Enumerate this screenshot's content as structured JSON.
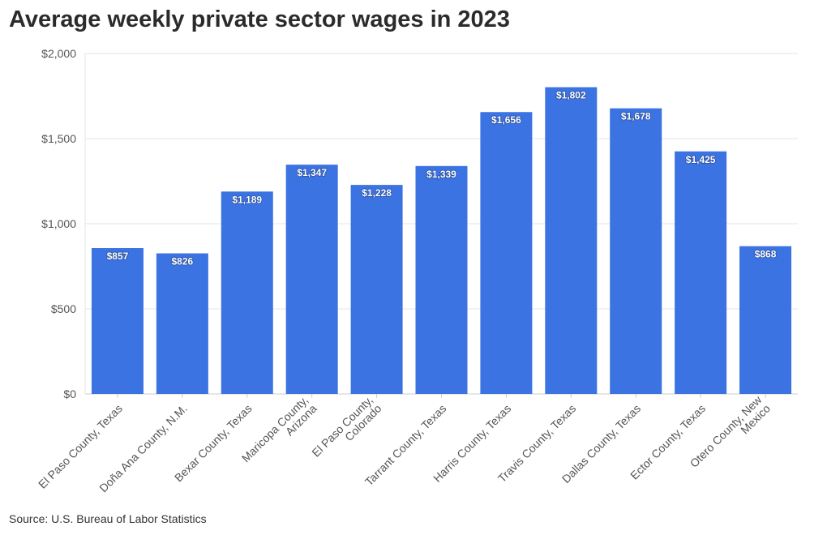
{
  "title": "Average weekly private sector wages in 2023",
  "source": "Source: U.S. Bureau of Labor Statistics",
  "colors": {
    "bar": "#3b73e3",
    "grid": "#e6e6e6",
    "text": "#333333"
  },
  "chart_data": {
    "type": "bar",
    "title": "Average weekly private sector wages in 2023",
    "xlabel": "",
    "ylabel": "",
    "ylim": [
      0,
      2000
    ],
    "yticks": [
      0,
      500,
      1000,
      1500,
      2000
    ],
    "ytick_labels": [
      "$0",
      "$500",
      "$1,000",
      "$1,500",
      "$2,000"
    ],
    "grid": true,
    "categories": [
      [
        "El Paso County, Texas"
      ],
      [
        "Doña Ana County, N.M."
      ],
      [
        "Bexar County, Texas"
      ],
      [
        "Maricopa County,",
        "Arizona"
      ],
      [
        "El Paso County,",
        "Colorado"
      ],
      [
        "Tarrant County, Texas"
      ],
      [
        "Harris County, Texas"
      ],
      [
        "Travis County, Texas"
      ],
      [
        "Dallas County, Texas"
      ],
      [
        "Ector County, Texas"
      ],
      [
        "Otero County, New",
        "Mexico"
      ]
    ],
    "values": [
      857,
      826,
      1189,
      1347,
      1228,
      1339,
      1656,
      1802,
      1678,
      1425,
      868
    ],
    "value_labels": [
      "$857",
      "$826",
      "$1,189",
      "$1,347",
      "$1,228",
      "$1,339",
      "$1,656",
      "$1,802",
      "$1,678",
      "$1,425",
      "$868"
    ]
  }
}
